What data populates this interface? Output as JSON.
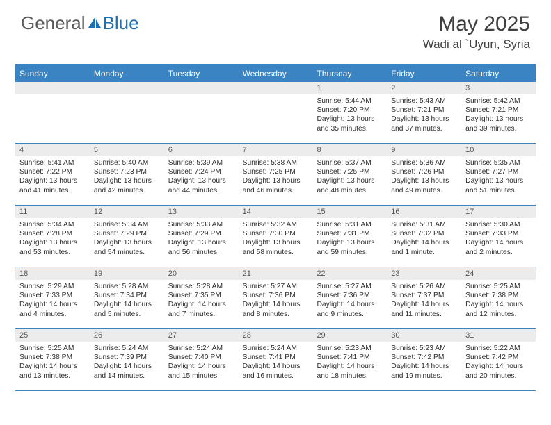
{
  "logo": {
    "part1": "General",
    "part2": "Blue"
  },
  "colors": {
    "brand_blue": "#1f6fb2",
    "header_blue": "#3b84c4",
    "logo_gray": "#5a5a5a",
    "title_gray": "#404040",
    "daynum_bg": "#ececec",
    "daynum_text": "#555555",
    "border_blue": "#3b84c4"
  },
  "title": "May 2025",
  "location": "Wadi al `Uyun, Syria",
  "weekdays": [
    "Sunday",
    "Monday",
    "Tuesday",
    "Wednesday",
    "Thursday",
    "Friday",
    "Saturday"
  ],
  "weeks": [
    [
      null,
      null,
      null,
      null,
      {
        "n": "1",
        "sr": "5:44 AM",
        "ss": "7:20 PM",
        "dl": "13 hours and 35 minutes."
      },
      {
        "n": "2",
        "sr": "5:43 AM",
        "ss": "7:21 PM",
        "dl": "13 hours and 37 minutes."
      },
      {
        "n": "3",
        "sr": "5:42 AM",
        "ss": "7:21 PM",
        "dl": "13 hours and 39 minutes."
      }
    ],
    [
      {
        "n": "4",
        "sr": "5:41 AM",
        "ss": "7:22 PM",
        "dl": "13 hours and 41 minutes."
      },
      {
        "n": "5",
        "sr": "5:40 AM",
        "ss": "7:23 PM",
        "dl": "13 hours and 42 minutes."
      },
      {
        "n": "6",
        "sr": "5:39 AM",
        "ss": "7:24 PM",
        "dl": "13 hours and 44 minutes."
      },
      {
        "n": "7",
        "sr": "5:38 AM",
        "ss": "7:25 PM",
        "dl": "13 hours and 46 minutes."
      },
      {
        "n": "8",
        "sr": "5:37 AM",
        "ss": "7:25 PM",
        "dl": "13 hours and 48 minutes."
      },
      {
        "n": "9",
        "sr": "5:36 AM",
        "ss": "7:26 PM",
        "dl": "13 hours and 49 minutes."
      },
      {
        "n": "10",
        "sr": "5:35 AM",
        "ss": "7:27 PM",
        "dl": "13 hours and 51 minutes."
      }
    ],
    [
      {
        "n": "11",
        "sr": "5:34 AM",
        "ss": "7:28 PM",
        "dl": "13 hours and 53 minutes."
      },
      {
        "n": "12",
        "sr": "5:34 AM",
        "ss": "7:29 PM",
        "dl": "13 hours and 54 minutes."
      },
      {
        "n": "13",
        "sr": "5:33 AM",
        "ss": "7:29 PM",
        "dl": "13 hours and 56 minutes."
      },
      {
        "n": "14",
        "sr": "5:32 AM",
        "ss": "7:30 PM",
        "dl": "13 hours and 58 minutes."
      },
      {
        "n": "15",
        "sr": "5:31 AM",
        "ss": "7:31 PM",
        "dl": "13 hours and 59 minutes."
      },
      {
        "n": "16",
        "sr": "5:31 AM",
        "ss": "7:32 PM",
        "dl": "14 hours and 1 minute."
      },
      {
        "n": "17",
        "sr": "5:30 AM",
        "ss": "7:33 PM",
        "dl": "14 hours and 2 minutes."
      }
    ],
    [
      {
        "n": "18",
        "sr": "5:29 AM",
        "ss": "7:33 PM",
        "dl": "14 hours and 4 minutes."
      },
      {
        "n": "19",
        "sr": "5:28 AM",
        "ss": "7:34 PM",
        "dl": "14 hours and 5 minutes."
      },
      {
        "n": "20",
        "sr": "5:28 AM",
        "ss": "7:35 PM",
        "dl": "14 hours and 7 minutes."
      },
      {
        "n": "21",
        "sr": "5:27 AM",
        "ss": "7:36 PM",
        "dl": "14 hours and 8 minutes."
      },
      {
        "n": "22",
        "sr": "5:27 AM",
        "ss": "7:36 PM",
        "dl": "14 hours and 9 minutes."
      },
      {
        "n": "23",
        "sr": "5:26 AM",
        "ss": "7:37 PM",
        "dl": "14 hours and 11 minutes."
      },
      {
        "n": "24",
        "sr": "5:25 AM",
        "ss": "7:38 PM",
        "dl": "14 hours and 12 minutes."
      }
    ],
    [
      {
        "n": "25",
        "sr": "5:25 AM",
        "ss": "7:38 PM",
        "dl": "14 hours and 13 minutes."
      },
      {
        "n": "26",
        "sr": "5:24 AM",
        "ss": "7:39 PM",
        "dl": "14 hours and 14 minutes."
      },
      {
        "n": "27",
        "sr": "5:24 AM",
        "ss": "7:40 PM",
        "dl": "14 hours and 15 minutes."
      },
      {
        "n": "28",
        "sr": "5:24 AM",
        "ss": "7:41 PM",
        "dl": "14 hours and 16 minutes."
      },
      {
        "n": "29",
        "sr": "5:23 AM",
        "ss": "7:41 PM",
        "dl": "14 hours and 18 minutes."
      },
      {
        "n": "30",
        "sr": "5:23 AM",
        "ss": "7:42 PM",
        "dl": "14 hours and 19 minutes."
      },
      {
        "n": "31",
        "sr": "5:22 AM",
        "ss": "7:42 PM",
        "dl": "14 hours and 20 minutes."
      }
    ]
  ],
  "labels": {
    "sunrise": "Sunrise: ",
    "sunset": "Sunset: ",
    "daylight": "Daylight: "
  }
}
